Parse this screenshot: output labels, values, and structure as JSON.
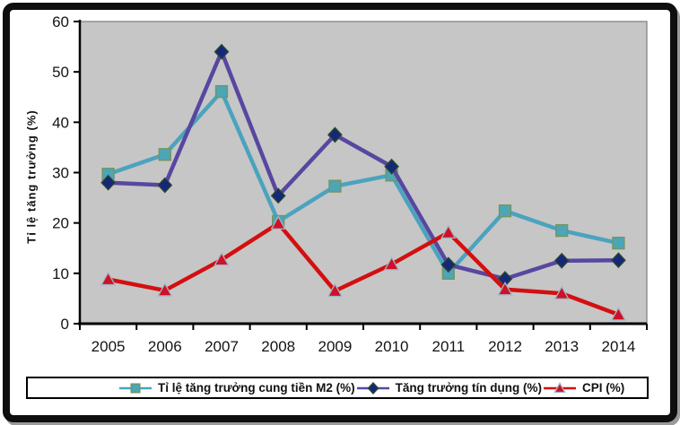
{
  "chart_data": {
    "type": "line",
    "title": "",
    "xlabel": "",
    "ylabel": "Tỉ lệ tăng trưởng (%)",
    "ylim": [
      0,
      60
    ],
    "yticks": [
      0,
      10,
      20,
      30,
      40,
      50,
      60
    ],
    "grid": false,
    "legend_position": "bottom",
    "plot_bg_color": "#c6c6c6",
    "plot_border_color": "#8f8f8f",
    "axis_color": "#000000",
    "categories": [
      "2005",
      "2006",
      "2007",
      "2008",
      "2009",
      "2010",
      "2011",
      "2012",
      "2013",
      "2014"
    ],
    "series": [
      {
        "name": "Tỉ lệ tăng trưởng cung tiền M2 (%)",
        "marker": "square",
        "color": "#4ba3be",
        "marker_fill": "#4da5b5",
        "marker_stroke": "#74955e",
        "values": [
          29.7,
          33.6,
          46.1,
          20.3,
          27.3,
          29.5,
          10.0,
          22.4,
          18.5,
          16.0
        ]
      },
      {
        "name": "Tăng trưởng tín dụng (%)",
        "marker": "diamond",
        "color": "#5847a0",
        "marker_fill": "#152878",
        "marker_stroke": "#2c4a2c",
        "values": [
          28.0,
          27.5,
          54.0,
          25.4,
          37.5,
          31.2,
          11.7,
          8.9,
          12.5,
          12.6
        ]
      },
      {
        "name": "CPI (%)",
        "marker": "triangle",
        "color": "#d40f0f",
        "marker_fill": "#ce1126",
        "marker_stroke": "#9fb6c8",
        "values": [
          8.8,
          6.6,
          12.7,
          19.9,
          6.5,
          11.8,
          18.1,
          6.8,
          6.0,
          1.8
        ]
      }
    ]
  }
}
